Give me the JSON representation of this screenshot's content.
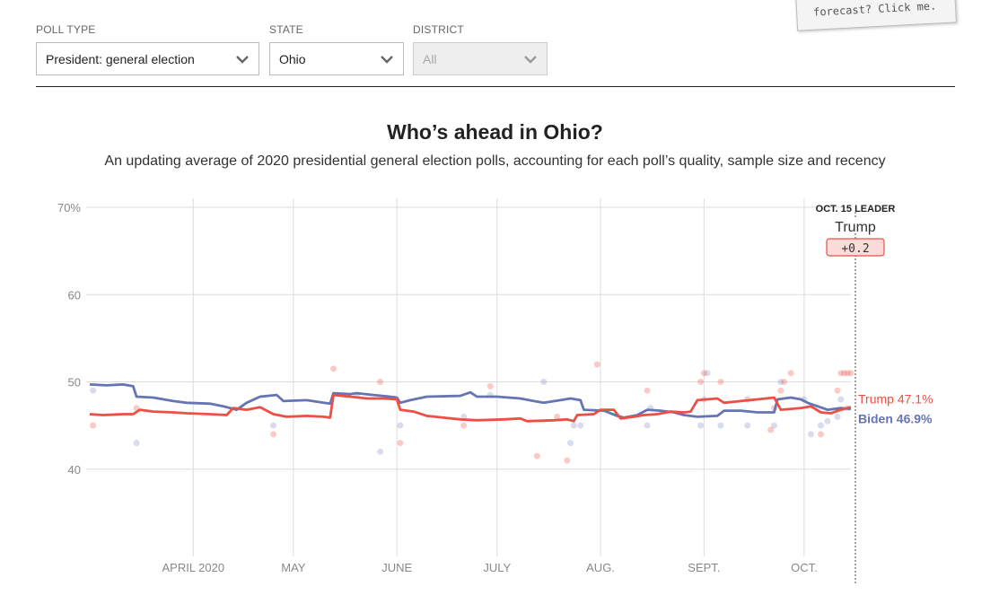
{
  "filters": {
    "poll_type": {
      "label": "POLL TYPE",
      "value": "President: general election"
    },
    "state": {
      "label": "STATE",
      "value": "Ohio"
    },
    "district": {
      "label": "DISTRICT",
      "value": "All"
    }
  },
  "note_text": "forecast? Click me.",
  "colors": {
    "trump": "#ed4f44",
    "biden": "#6574b4",
    "grid": "#dcdcdc",
    "axis_text": "#888888"
  },
  "chart_data": {
    "type": "line",
    "title": "Who’s ahead in Ohio?",
    "subtitle": "An updating average of 2020 presidential general election polls, accounting for each poll’s quality, sample size and recency",
    "y_ticks": [
      {
        "value": 70,
        "label": "70%"
      },
      {
        "value": 60,
        "label": "60"
      },
      {
        "value": 50,
        "label": "50"
      },
      {
        "value": 40,
        "label": "40"
      }
    ],
    "ylim": [
      30,
      70
    ],
    "x_domain": [
      "2020-03-01",
      "2020-10-15"
    ],
    "x_ticks": [
      {
        "date": "2020-04-01",
        "label": "APRIL 2020"
      },
      {
        "date": "2020-05-01",
        "label": "MAY"
      },
      {
        "date": "2020-06-01",
        "label": "JUNE"
      },
      {
        "date": "2020-07-01",
        "label": "JULY"
      },
      {
        "date": "2020-08-01",
        "label": "AUG."
      },
      {
        "date": "2020-09-01",
        "label": "SEPT."
      },
      {
        "date": "2020-10-01",
        "label": "OCT."
      }
    ],
    "series": [
      {
        "name": "Biden",
        "end_label": "Biden 46.9%",
        "points": [
          [
            "2020-03-01",
            49.7
          ],
          [
            "2020-03-06",
            49.6
          ],
          [
            "2020-03-11",
            49.7
          ],
          [
            "2020-03-14",
            49.5
          ],
          [
            "2020-03-15",
            48.3
          ],
          [
            "2020-03-20",
            48.2
          ],
          [
            "2020-03-26",
            47.8
          ],
          [
            "2020-03-30",
            47.6
          ],
          [
            "2020-04-06",
            47.5
          ],
          [
            "2020-04-10",
            47.2
          ],
          [
            "2020-04-14",
            46.8
          ],
          [
            "2020-04-17",
            47.6
          ],
          [
            "2020-04-21",
            48.3
          ],
          [
            "2020-04-26",
            48.5
          ],
          [
            "2020-04-28",
            47.8
          ],
          [
            "2020-05-05",
            47.9
          ],
          [
            "2020-05-10",
            47.6
          ],
          [
            "2020-05-12",
            47.5
          ],
          [
            "2020-05-13",
            48.7
          ],
          [
            "2020-05-18",
            48.6
          ],
          [
            "2020-05-20",
            48.7
          ],
          [
            "2020-05-25",
            48.5
          ],
          [
            "2020-05-30",
            48.3
          ],
          [
            "2020-06-01",
            48.2
          ],
          [
            "2020-06-02",
            47.6
          ],
          [
            "2020-06-05",
            47.9
          ],
          [
            "2020-06-10",
            48.3
          ],
          [
            "2020-06-20",
            48.4
          ],
          [
            "2020-06-23",
            48.8
          ],
          [
            "2020-06-25",
            48.3
          ],
          [
            "2020-07-01",
            48.3
          ],
          [
            "2020-07-08",
            48.1
          ],
          [
            "2020-07-12",
            47.8
          ],
          [
            "2020-07-15",
            47.6
          ],
          [
            "2020-07-20",
            47.9
          ],
          [
            "2020-07-23",
            48.1
          ],
          [
            "2020-07-26",
            47.9
          ],
          [
            "2020-07-27",
            46.8
          ],
          [
            "2020-08-02",
            46.7
          ],
          [
            "2020-08-06",
            46.1
          ],
          [
            "2020-08-08",
            45.9
          ],
          [
            "2020-08-12",
            46.2
          ],
          [
            "2020-08-15",
            46.8
          ],
          [
            "2020-08-19",
            46.7
          ],
          [
            "2020-08-23",
            46.5
          ],
          [
            "2020-08-26",
            46.2
          ],
          [
            "2020-08-30",
            46.0
          ],
          [
            "2020-09-05",
            46.1
          ],
          [
            "2020-09-07",
            46.7
          ],
          [
            "2020-09-12",
            46.7
          ],
          [
            "2020-09-17",
            46.5
          ],
          [
            "2020-09-22",
            46.5
          ],
          [
            "2020-09-23",
            48.0
          ],
          [
            "2020-09-27",
            48.2
          ],
          [
            "2020-09-30",
            48.0
          ],
          [
            "2020-10-02",
            47.6
          ],
          [
            "2020-10-05",
            47.2
          ],
          [
            "2020-10-08",
            46.8
          ],
          [
            "2020-10-12",
            47.0
          ],
          [
            "2020-10-15",
            46.9
          ]
        ],
        "polls": [
          [
            "2020-03-02",
            49
          ],
          [
            "2020-03-15",
            43
          ],
          [
            "2020-04-25",
            45
          ],
          [
            "2020-05-20",
            48.5
          ],
          [
            "2020-05-27",
            42
          ],
          [
            "2020-06-02",
            45
          ],
          [
            "2020-06-21",
            46
          ],
          [
            "2020-06-29",
            48.5
          ],
          [
            "2020-07-15",
            50
          ],
          [
            "2020-07-23",
            43
          ],
          [
            "2020-07-24",
            45
          ],
          [
            "2020-07-26",
            45
          ],
          [
            "2020-08-15",
            45
          ],
          [
            "2020-08-16",
            47
          ],
          [
            "2020-08-31",
            45
          ],
          [
            "2020-09-01",
            48
          ],
          [
            "2020-09-02",
            51
          ],
          [
            "2020-09-06",
            45
          ],
          [
            "2020-09-14",
            45
          ],
          [
            "2020-09-22",
            45
          ],
          [
            "2020-09-24",
            50
          ],
          [
            "2020-10-01",
            48
          ],
          [
            "2020-10-03",
            44
          ],
          [
            "2020-10-06",
            45
          ],
          [
            "2020-10-08",
            45.5
          ],
          [
            "2020-10-11",
            46
          ],
          [
            "2020-10-12",
            48
          ],
          [
            "2020-10-14",
            47
          ]
        ]
      },
      {
        "name": "Trump",
        "end_label": "Trump 47.1%",
        "points": [
          [
            "2020-03-01",
            46.3
          ],
          [
            "2020-03-05",
            46.2
          ],
          [
            "2020-03-11",
            46.3
          ],
          [
            "2020-03-14",
            46.3
          ],
          [
            "2020-03-16",
            46.8
          ],
          [
            "2020-03-20",
            46.6
          ],
          [
            "2020-03-26",
            46.5
          ],
          [
            "2020-03-30",
            46.4
          ],
          [
            "2020-04-06",
            46.3
          ],
          [
            "2020-04-11",
            46.2
          ],
          [
            "2020-04-13",
            47.0
          ],
          [
            "2020-04-17",
            46.8
          ],
          [
            "2020-04-21",
            47.1
          ],
          [
            "2020-04-25",
            46.3
          ],
          [
            "2020-04-29",
            46.0
          ],
          [
            "2020-05-05",
            46.1
          ],
          [
            "2020-05-10",
            46.0
          ],
          [
            "2020-05-12",
            45.9
          ],
          [
            "2020-05-13",
            48.5
          ],
          [
            "2020-05-18",
            48.3
          ],
          [
            "2020-05-23",
            48.1
          ],
          [
            "2020-05-28",
            48.1
          ],
          [
            "2020-06-01",
            48.0
          ],
          [
            "2020-06-02",
            46.8
          ],
          [
            "2020-06-06",
            46.6
          ],
          [
            "2020-06-10",
            46.1
          ],
          [
            "2020-06-15",
            45.9
          ],
          [
            "2020-06-20",
            45.7
          ],
          [
            "2020-06-25",
            45.6
          ],
          [
            "2020-07-03",
            45.7
          ],
          [
            "2020-07-08",
            45.8
          ],
          [
            "2020-07-10",
            45.5
          ],
          [
            "2020-07-18",
            45.6
          ],
          [
            "2020-07-22",
            45.7
          ],
          [
            "2020-07-24",
            45.5
          ],
          [
            "2020-07-25",
            46.2
          ],
          [
            "2020-07-30",
            46.3
          ],
          [
            "2020-08-01",
            46.8
          ],
          [
            "2020-08-05",
            46.8
          ],
          [
            "2020-08-07",
            45.8
          ],
          [
            "2020-08-11",
            46.0
          ],
          [
            "2020-08-14",
            46.2
          ],
          [
            "2020-08-18",
            46.3
          ],
          [
            "2020-08-22",
            46.6
          ],
          [
            "2020-08-26",
            46.5
          ],
          [
            "2020-08-28",
            46.6
          ],
          [
            "2020-08-30",
            47.9
          ],
          [
            "2020-09-05",
            48.1
          ],
          [
            "2020-09-07",
            47.6
          ],
          [
            "2020-09-12",
            47.8
          ],
          [
            "2020-09-17",
            48.0
          ],
          [
            "2020-09-22",
            48.2
          ],
          [
            "2020-09-24",
            46.8
          ],
          [
            "2020-09-30",
            47.0
          ],
          [
            "2020-10-03",
            47.2
          ],
          [
            "2020-10-06",
            46.5
          ],
          [
            "2020-10-09",
            46.4
          ],
          [
            "2020-10-12",
            46.8
          ],
          [
            "2020-10-15",
            47.1
          ]
        ],
        "polls": [
          [
            "2020-03-02",
            45
          ],
          [
            "2020-03-15",
            47
          ],
          [
            "2020-04-25",
            44
          ],
          [
            "2020-05-13",
            51.5
          ],
          [
            "2020-05-27",
            50
          ],
          [
            "2020-06-02",
            43
          ],
          [
            "2020-06-21",
            45
          ],
          [
            "2020-06-29",
            49.5
          ],
          [
            "2020-07-13",
            41.5
          ],
          [
            "2020-07-19",
            46
          ],
          [
            "2020-07-22",
            41
          ],
          [
            "2020-07-31",
            52
          ],
          [
            "2020-08-15",
            49
          ],
          [
            "2020-08-31",
            50
          ],
          [
            "2020-09-01",
            51
          ],
          [
            "2020-09-06",
            50
          ],
          [
            "2020-09-14",
            48
          ],
          [
            "2020-09-21",
            44.5
          ],
          [
            "2020-09-22",
            47
          ],
          [
            "2020-09-24",
            49
          ],
          [
            "2020-09-25",
            50
          ],
          [
            "2020-09-27",
            51
          ],
          [
            "2020-10-06",
            44
          ],
          [
            "2020-10-11",
            49
          ],
          [
            "2020-10-12",
            51
          ],
          [
            "2020-10-13",
            51
          ],
          [
            "2020-10-14",
            51
          ],
          [
            "2020-10-15",
            51
          ]
        ]
      }
    ],
    "leader": {
      "header": "OCT. 15 LEADER",
      "name": "Trump",
      "margin": "+0.2"
    }
  }
}
